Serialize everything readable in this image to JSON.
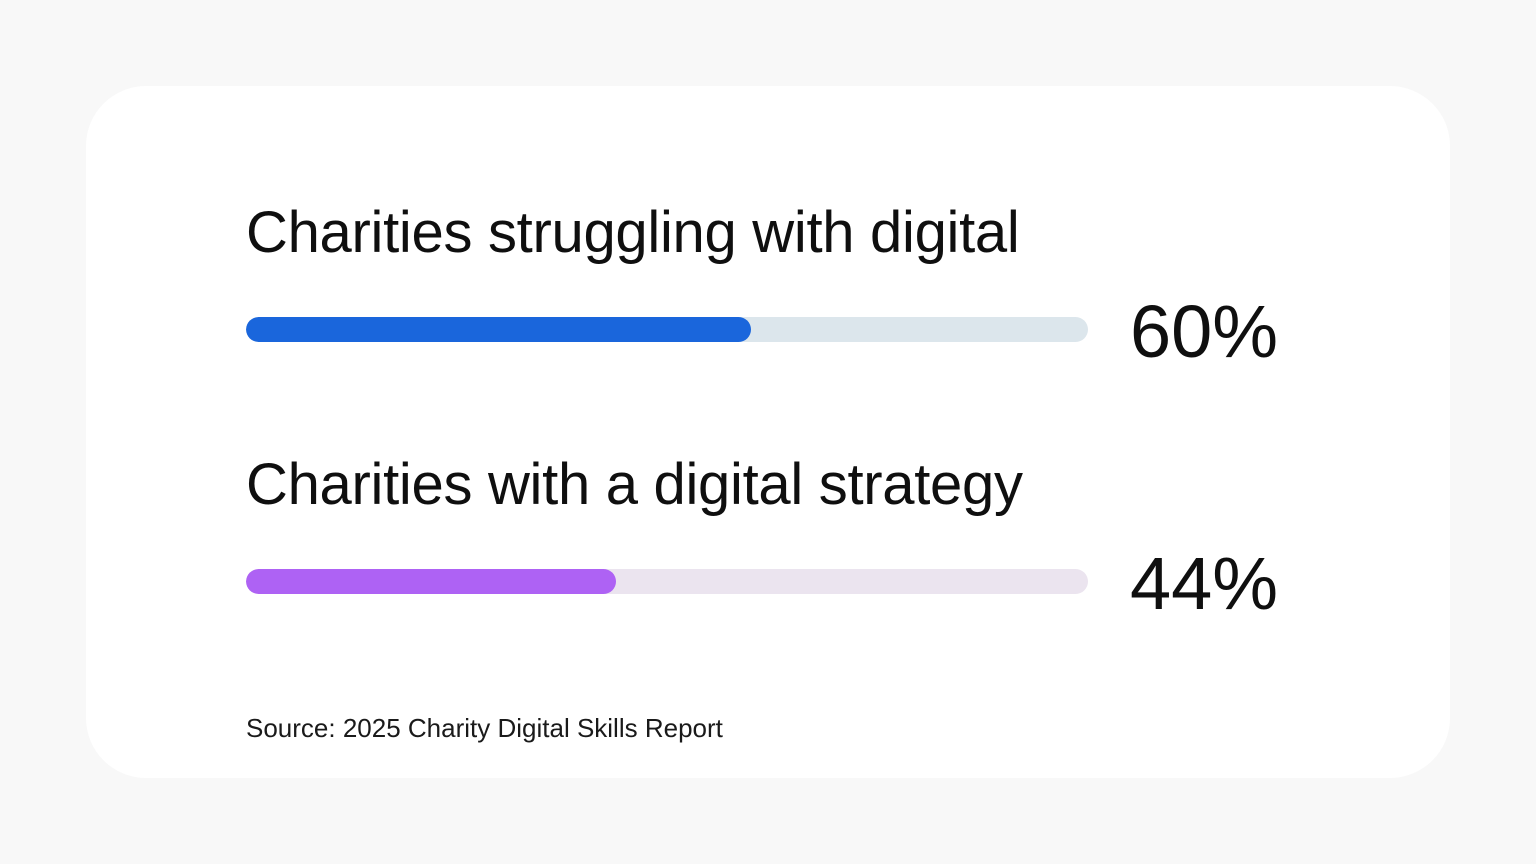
{
  "chart_data": {
    "type": "bar",
    "categories": [
      "Charities struggling with digital",
      "Charities with a digital strategy"
    ],
    "values": [
      60,
      44
    ],
    "value_labels": [
      "60%",
      "44%"
    ],
    "xlim": [
      0,
      100
    ],
    "colors": {
      "series_fill": [
        "#1a66dc",
        "#ae62f4"
      ],
      "track": [
        "#dce6ec",
        "#ebe4ef"
      ]
    }
  },
  "source": "Source: 2025 Charity Digital Skills Report"
}
